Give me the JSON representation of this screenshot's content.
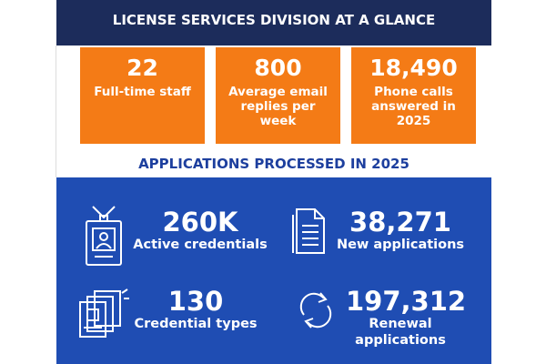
{
  "header": {
    "title": "LICENSE SERVICES DIVISION AT A GLANCE"
  },
  "highlights": [
    {
      "number": "22",
      "label": "Full-time staff"
    },
    {
      "number": "800",
      "label": "Average email replies per week"
    },
    {
      "number": "18,490",
      "label": "Phone calls answered in 2025"
    }
  ],
  "applications": {
    "heading": "APPLICATIONS PROCESSED IN 2025",
    "stats": [
      {
        "number": "260K",
        "label": "Active credentials"
      },
      {
        "number": "38,271",
        "label": "New applications"
      },
      {
        "number": "130",
        "label": "Credential types"
      },
      {
        "number": "197,312",
        "label": "Renewal applications"
      }
    ]
  }
}
